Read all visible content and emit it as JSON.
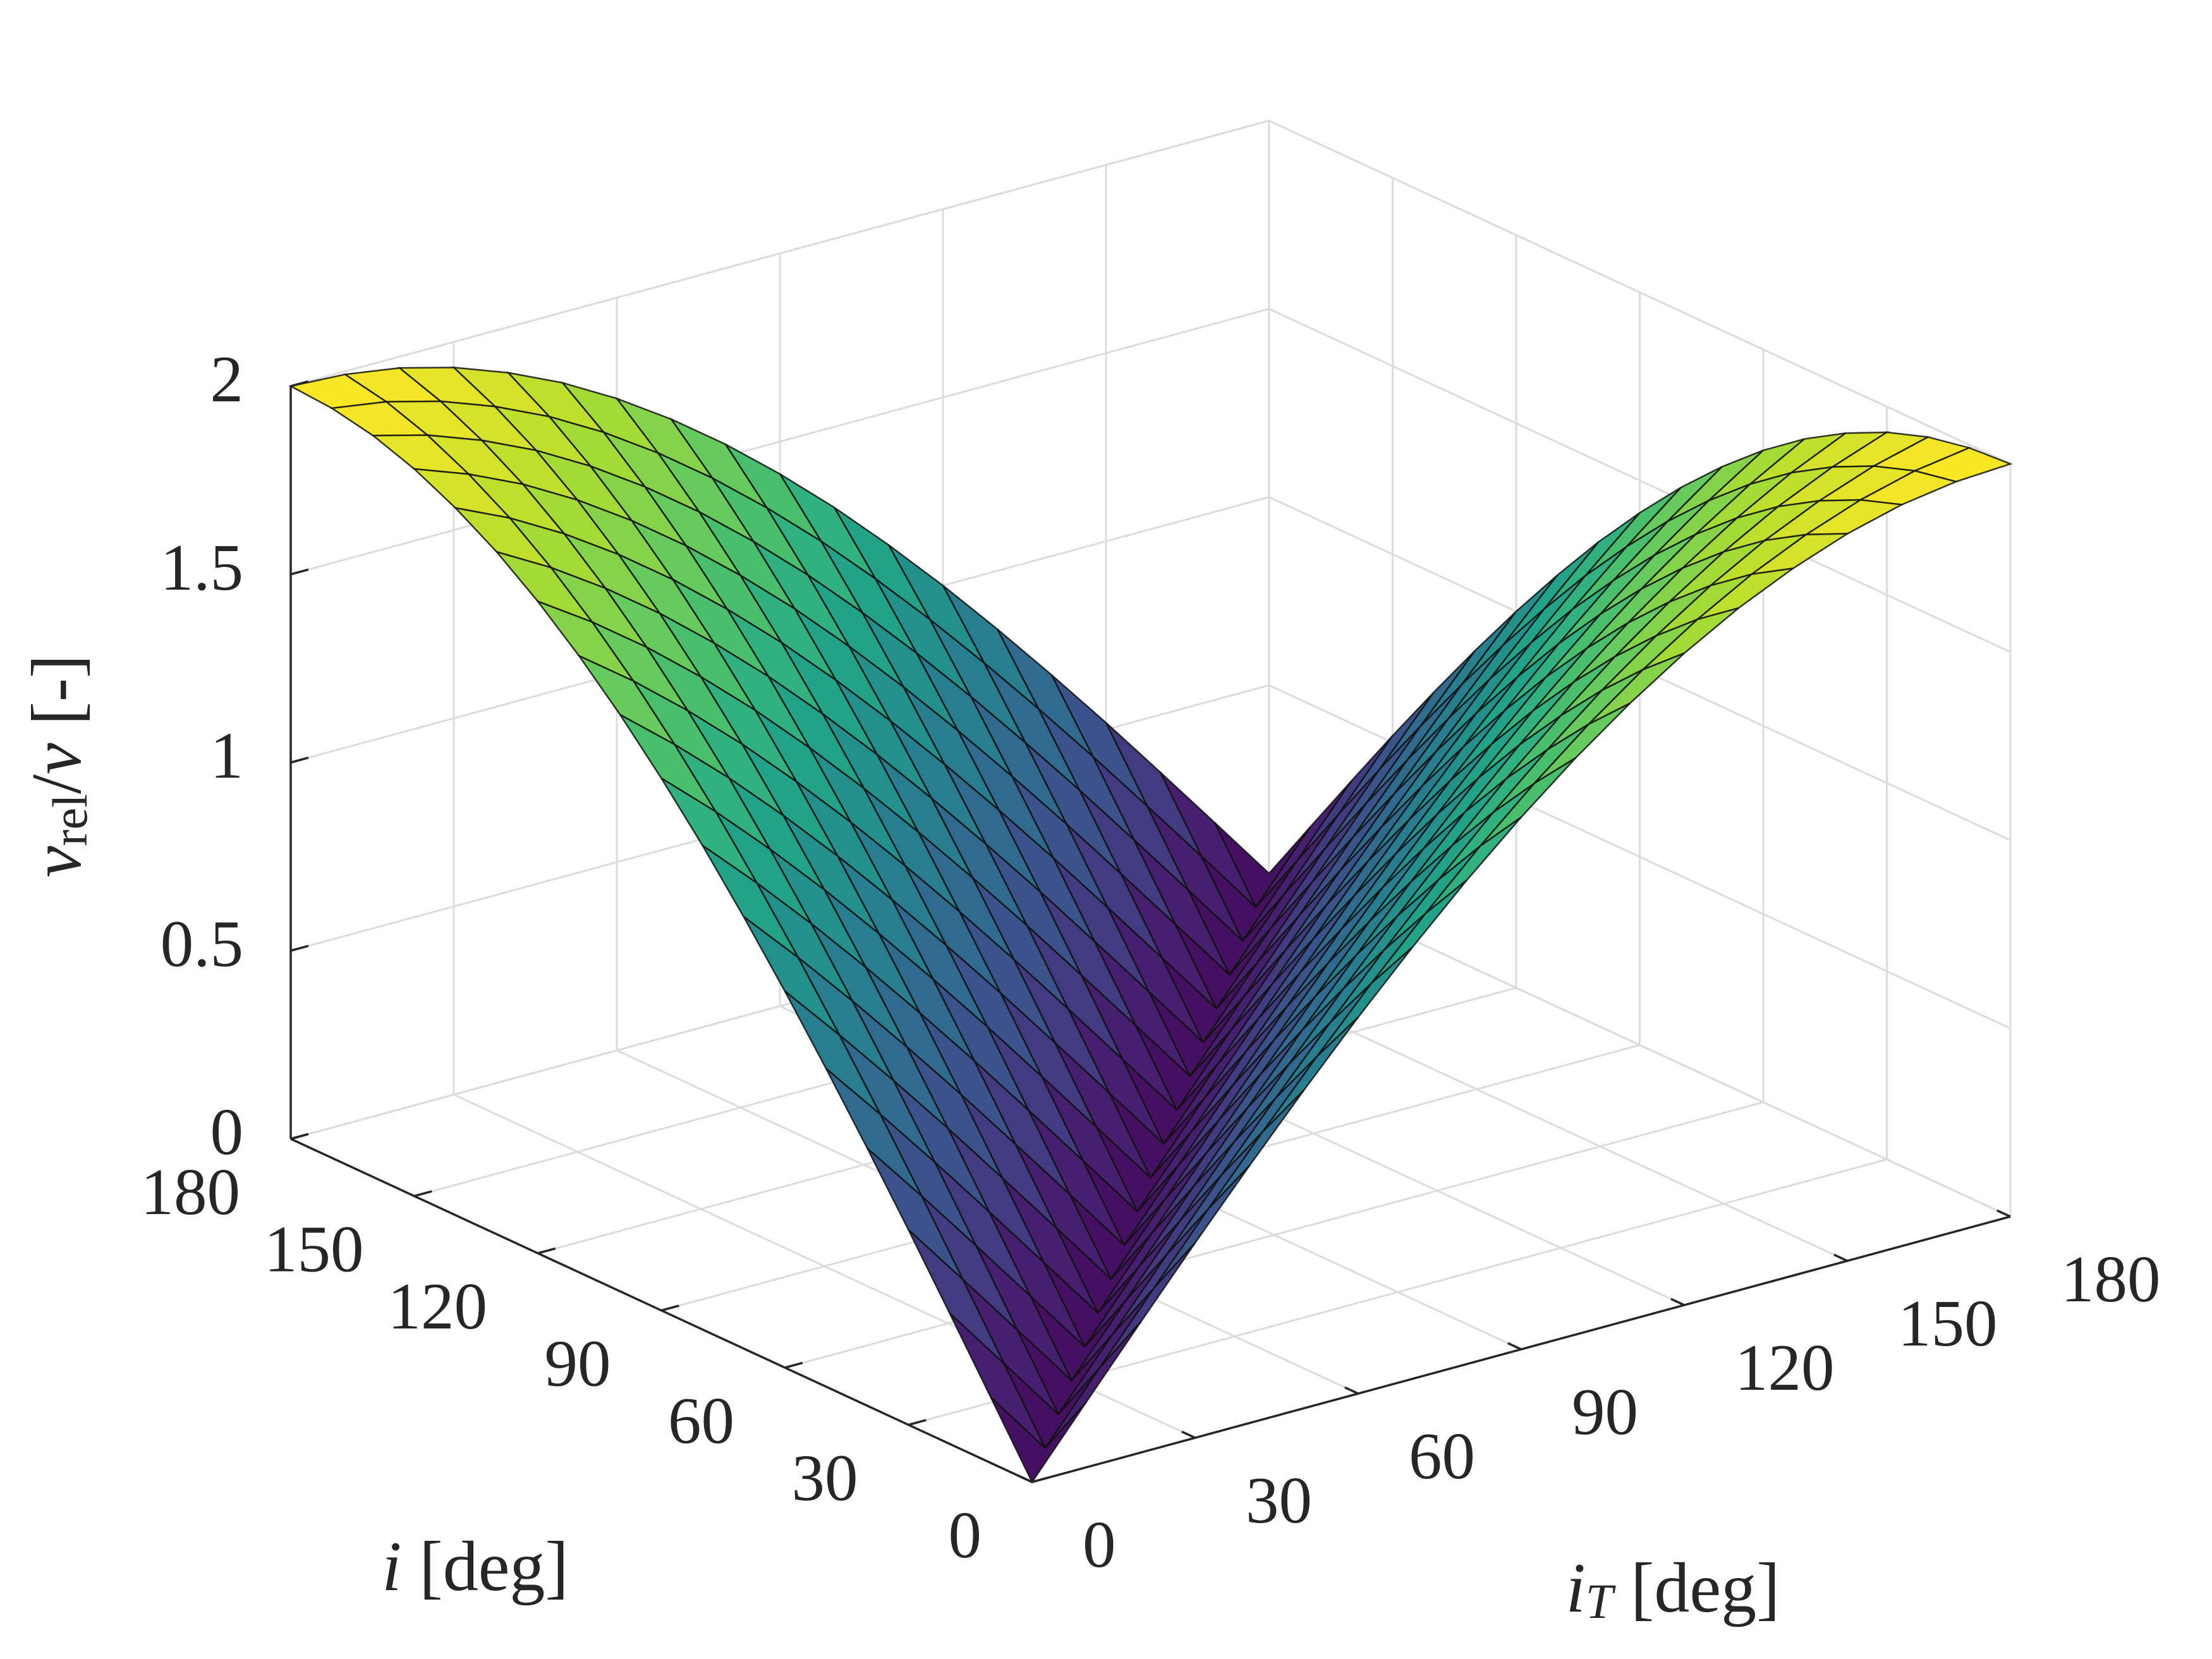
{
  "chart_data": {
    "type": "surface",
    "xlabel": [
      "i",
      "T",
      " [deg]"
    ],
    "ylabel": [
      "i",
      " [deg]"
    ],
    "zlabel": [
      "v",
      "rel",
      "/",
      "v",
      " [-]"
    ],
    "x": [
      0,
      10,
      20,
      30,
      40,
      50,
      60,
      70,
      80,
      90,
      100,
      110,
      120,
      130,
      140,
      150,
      160,
      170,
      180
    ],
    "y": [
      0,
      10,
      20,
      30,
      40,
      50,
      60,
      70,
      80,
      90,
      100,
      110,
      120,
      130,
      140,
      150,
      160,
      170,
      180
    ],
    "z": [
      [
        0,
        0.174,
        0.347,
        0.518,
        0.684,
        0.845,
        1,
        1.147,
        1.286,
        1.414,
        1.532,
        1.638,
        1.732,
        1.813,
        1.879,
        1.932,
        1.97,
        1.992,
        2
      ],
      [
        0.174,
        0,
        0.174,
        0.347,
        0.518,
        0.684,
        0.845,
        1,
        1.147,
        1.286,
        1.414,
        1.532,
        1.638,
        1.732,
        1.813,
        1.879,
        1.932,
        1.97,
        1.992
      ],
      [
        0.347,
        0.174,
        0,
        0.174,
        0.347,
        0.518,
        0.684,
        0.845,
        1,
        1.147,
        1.286,
        1.414,
        1.532,
        1.638,
        1.732,
        1.813,
        1.879,
        1.932,
        1.97
      ],
      [
        0.518,
        0.347,
        0.174,
        0,
        0.174,
        0.347,
        0.518,
        0.684,
        0.845,
        1,
        1.147,
        1.286,
        1.414,
        1.532,
        1.638,
        1.732,
        1.813,
        1.879,
        1.932
      ],
      [
        0.684,
        0.518,
        0.347,
        0.174,
        0,
        0.174,
        0.347,
        0.518,
        0.684,
        0.845,
        1,
        1.147,
        1.286,
        1.414,
        1.532,
        1.638,
        1.732,
        1.813,
        1.879
      ],
      [
        0.845,
        0.684,
        0.518,
        0.347,
        0.174,
        0,
        0.174,
        0.347,
        0.518,
        0.684,
        0.845,
        1,
        1.147,
        1.286,
        1.414,
        1.532,
        1.638,
        1.732,
        1.813
      ],
      [
        1,
        0.845,
        0.684,
        0.518,
        0.347,
        0.174,
        0,
        0.174,
        0.347,
        0.518,
        0.684,
        0.845,
        1,
        1.147,
        1.286,
        1.414,
        1.532,
        1.638,
        1.732
      ],
      [
        1.147,
        1,
        0.845,
        0.684,
        0.518,
        0.347,
        0.174,
        0,
        0.174,
        0.347,
        0.518,
        0.684,
        0.845,
        1,
        1.147,
        1.286,
        1.414,
        1.532,
        1.638
      ],
      [
        1.286,
        1.147,
        1,
        0.845,
        0.684,
        0.518,
        0.347,
        0.174,
        0,
        0.174,
        0.347,
        0.518,
        0.684,
        0.845,
        1,
        1.147,
        1.286,
        1.414,
        1.532
      ],
      [
        1.414,
        1.286,
        1.147,
        1,
        0.845,
        0.684,
        0.518,
        0.347,
        0.174,
        0,
        0.174,
        0.347,
        0.518,
        0.684,
        0.845,
        1,
        1.147,
        1.286,
        1.414
      ],
      [
        1.532,
        1.414,
        1.286,
        1.147,
        1,
        0.845,
        0.684,
        0.518,
        0.347,
        0.174,
        0,
        0.174,
        0.347,
        0.518,
        0.684,
        0.845,
        1,
        1.147,
        1.286
      ],
      [
        1.638,
        1.532,
        1.414,
        1.286,
        1.147,
        1,
        0.845,
        0.684,
        0.518,
        0.347,
        0.174,
        0,
        0.174,
        0.347,
        0.518,
        0.684,
        0.845,
        1,
        1.147
      ],
      [
        1.732,
        1.638,
        1.532,
        1.414,
        1.286,
        1.147,
        1,
        0.845,
        0.684,
        0.518,
        0.347,
        0.174,
        0,
        0.174,
        0.347,
        0.518,
        0.684,
        0.845,
        1
      ],
      [
        1.813,
        1.732,
        1.638,
        1.532,
        1.414,
        1.286,
        1.147,
        1,
        0.845,
        0.684,
        0.518,
        0.347,
        0.174,
        0,
        0.174,
        0.347,
        0.518,
        0.684,
        0.845
      ],
      [
        1.879,
        1.813,
        1.732,
        1.638,
        1.532,
        1.414,
        1.286,
        1.147,
        1,
        0.845,
        0.684,
        0.518,
        0.347,
        0.174,
        0,
        0.174,
        0.347,
        0.518,
        0.684
      ],
      [
        1.932,
        1.879,
        1.813,
        1.732,
        1.638,
        1.532,
        1.414,
        1.286,
        1.147,
        1,
        0.845,
        0.684,
        0.518,
        0.347,
        0.174,
        0,
        0.174,
        0.347,
        0.518
      ],
      [
        1.97,
        1.932,
        1.879,
        1.813,
        1.732,
        1.638,
        1.532,
        1.414,
        1.286,
        1.147,
        1,
        0.845,
        0.684,
        0.518,
        0.347,
        0.174,
        0,
        0.174,
        0.347
      ],
      [
        1.992,
        1.97,
        1.932,
        1.879,
        1.813,
        1.732,
        1.638,
        1.532,
        1.414,
        1.286,
        1.147,
        1,
        0.845,
        0.684,
        0.518,
        0.347,
        0.174,
        0,
        0.174
      ],
      [
        2,
        1.992,
        1.97,
        1.932,
        1.879,
        1.813,
        1.732,
        1.638,
        1.532,
        1.414,
        1.286,
        1.147,
        1,
        0.845,
        0.684,
        0.518,
        0.347,
        0.174,
        0
      ]
    ],
    "xlim": [
      0,
      180
    ],
    "ylim": [
      0,
      180
    ],
    "zlim": [
      0,
      2
    ],
    "xticks": [
      0,
      30,
      60,
      90,
      120,
      150,
      180
    ],
    "yticks": [
      0,
      30,
      60,
      90,
      120,
      150,
      180
    ],
    "zticks": [
      0,
      0.5,
      1,
      1.5,
      2
    ],
    "grid": true,
    "colormap": "viridis",
    "edge_color": "#111111"
  }
}
